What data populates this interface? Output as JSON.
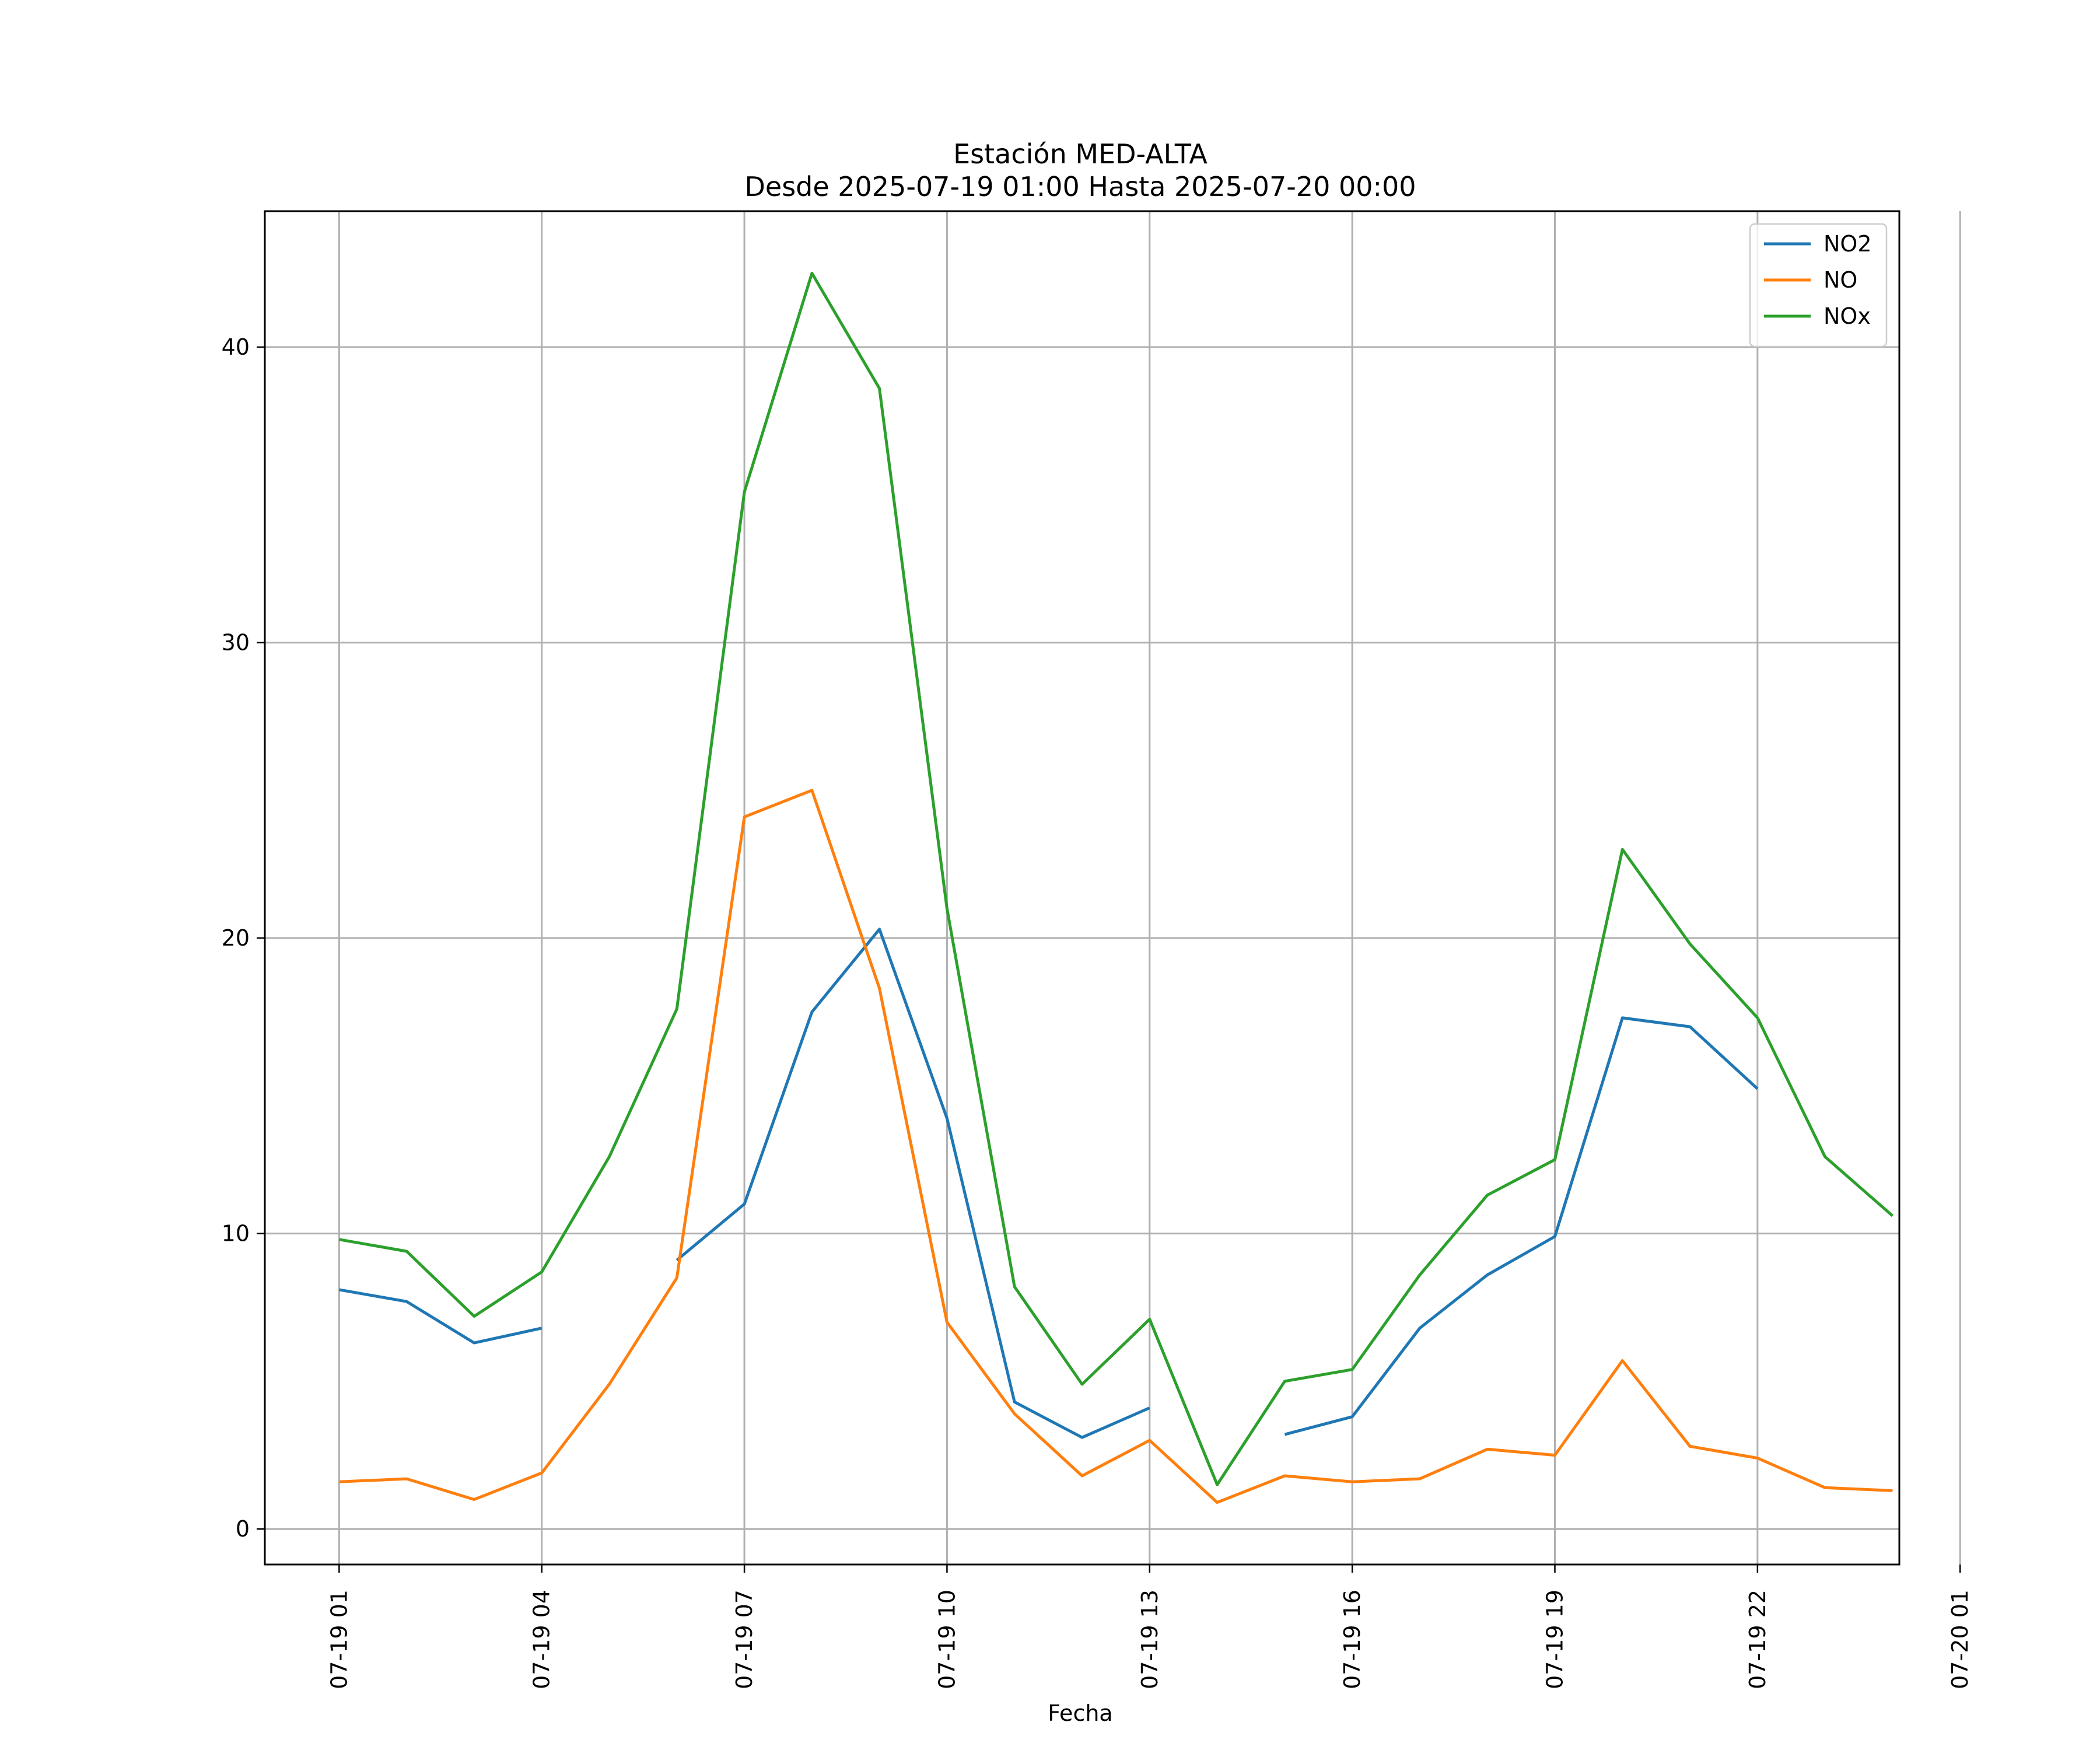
{
  "chart_data": {
    "type": "line",
    "title": "Estación MED-ALTA",
    "subtitle": "Desde 2025-07-19 01:00 Hasta 2025-07-20 00:00",
    "xlabel": "Fecha",
    "ylabel": "",
    "x": [
      "07-19 01",
      "07-19 02",
      "07-19 03",
      "07-19 04",
      "07-19 05",
      "07-19 06",
      "07-19 07",
      "07-19 08",
      "07-19 09",
      "07-19 10",
      "07-19 11",
      "07-19 12",
      "07-19 13",
      "07-19 14",
      "07-19 15",
      "07-19 16",
      "07-19 17",
      "07-19 18",
      "07-19 19",
      "07-19 20",
      "07-19 21",
      "07-19 22",
      "07-19 23",
      "07-20 00"
    ],
    "xlim": [
      "07-19 00",
      "07-20 01"
    ],
    "ylim": [
      -1.2,
      44.6
    ],
    "x_ticks": [
      "07-19 01",
      "07-19 04",
      "07-19 07",
      "07-19 10",
      "07-19 13",
      "07-19 16",
      "07-19 19",
      "07-19 22",
      "07-20 01"
    ],
    "y_ticks": [
      0,
      10,
      20,
      30,
      40
    ],
    "grid": true,
    "legend": "top-right",
    "series": [
      {
        "name": "NO2",
        "color": "#1f77b4",
        "values": [
          8.1,
          7.7,
          6.3,
          6.8,
          null,
          9.1,
          11.0,
          17.5,
          20.3,
          13.9,
          4.3,
          3.1,
          4.1,
          null,
          3.2,
          3.8,
          6.8,
          8.6,
          9.9,
          17.3,
          17.0,
          14.9,
          null,
          null
        ]
      },
      {
        "name": "NO",
        "color": "#ff7f0e",
        "values": [
          1.6,
          1.7,
          1.0,
          1.9,
          4.9,
          8.5,
          24.1,
          25.0,
          18.3,
          7.0,
          3.9,
          1.8,
          3.0,
          0.9,
          1.8,
          1.6,
          1.7,
          2.7,
          2.5,
          5.7,
          2.8,
          2.4,
          1.4,
          1.3
        ]
      },
      {
        "name": "NOx",
        "color": "#2ca02c",
        "values": [
          9.8,
          9.4,
          7.2,
          8.7,
          12.6,
          17.6,
          35.1,
          42.5,
          38.6,
          21.0,
          8.2,
          4.9,
          7.1,
          1.5,
          5.0,
          5.4,
          8.6,
          11.3,
          12.5,
          23.0,
          19.8,
          17.3,
          12.6,
          10.6
        ]
      }
    ]
  }
}
